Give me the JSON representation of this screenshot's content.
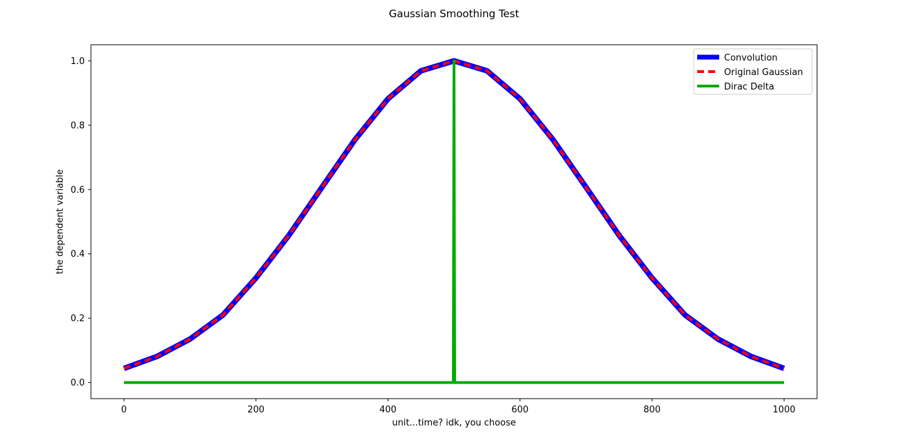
{
  "chart_data": {
    "type": "line",
    "title": "Gaussian Smoothing Test",
    "xlabel": "unit...time? idk, you choose",
    "ylabel": "the dependent variable",
    "xlim": [
      -50,
      1050
    ],
    "ylim": [
      -0.05,
      1.05
    ],
    "xticks": [
      0,
      200,
      400,
      600,
      800,
      1000
    ],
    "yticks": [
      0.0,
      0.2,
      0.4,
      0.6,
      0.8,
      1.0
    ],
    "xtick_labels": [
      "0",
      "200",
      "400",
      "600",
      "800",
      "1000"
    ],
    "ytick_labels": [
      "0.0",
      "0.2",
      "0.4",
      "0.6",
      "0.8",
      "1.0"
    ],
    "grid": false,
    "legend_position": "top-right",
    "series": [
      {
        "name": "Convolution",
        "color": "#0000ff",
        "style": "solid",
        "x": [
          0,
          50,
          100,
          150,
          200,
          250,
          300,
          350,
          400,
          450,
          500,
          550,
          600,
          650,
          700,
          750,
          800,
          850,
          900,
          950,
          1000
        ],
        "y": [
          0.044,
          0.081,
          0.135,
          0.21,
          0.325,
          0.458,
          0.607,
          0.755,
          0.882,
          0.969,
          1.0,
          0.969,
          0.882,
          0.755,
          0.607,
          0.458,
          0.325,
          0.21,
          0.135,
          0.081,
          0.044
        ]
      },
      {
        "name": "Original Gaussian",
        "color": "#ff0000",
        "style": "dashed",
        "x": [
          0,
          50,
          100,
          150,
          200,
          250,
          300,
          350,
          400,
          450,
          500,
          550,
          600,
          650,
          700,
          750,
          800,
          850,
          900,
          950,
          1000
        ],
        "y": [
          0.044,
          0.081,
          0.135,
          0.21,
          0.325,
          0.458,
          0.607,
          0.755,
          0.882,
          0.969,
          1.0,
          0.969,
          0.882,
          0.755,
          0.607,
          0.458,
          0.325,
          0.21,
          0.135,
          0.081,
          0.044
        ]
      },
      {
        "name": "Dirac Delta",
        "color": "#00aa00",
        "style": "solid",
        "x": [
          0,
          499,
          500,
          501,
          1000
        ],
        "y": [
          0.0,
          0.0,
          1.0,
          0.0,
          0.0
        ]
      }
    ]
  }
}
